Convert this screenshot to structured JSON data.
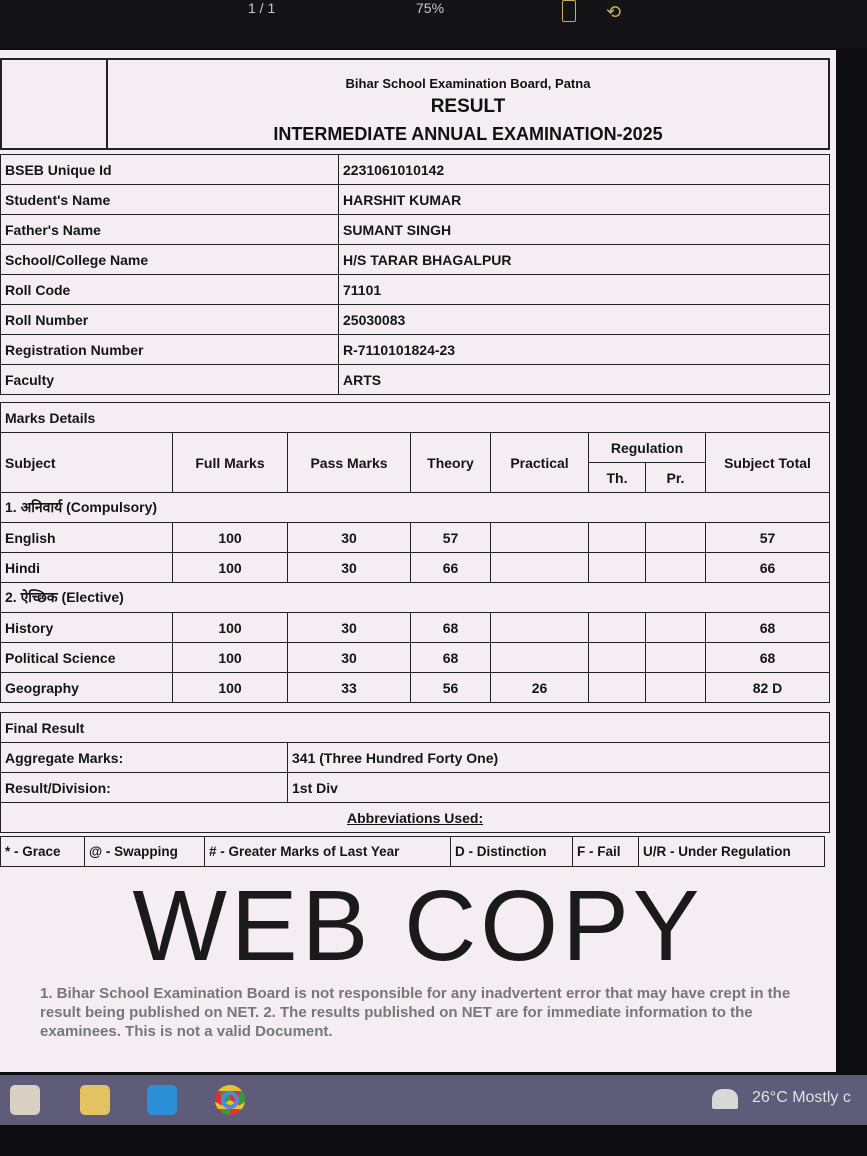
{
  "viewer": {
    "page": "1 / 1",
    "zoom": "75%"
  },
  "header": {
    "board": "Bihar School Examination Board, Patna",
    "title": "RESULT",
    "exam": "INTERMEDIATE ANNUAL EXAMINATION-2025"
  },
  "info": [
    {
      "label": "BSEB Unique Id",
      "value": "2231061010142"
    },
    {
      "label": "Student's Name",
      "value": "HARSHIT KUMAR"
    },
    {
      "label": "Father's Name",
      "value": "SUMANT SINGH"
    },
    {
      "label": "School/College Name",
      "value": "H/S TARAR BHAGALPUR"
    },
    {
      "label": "Roll Code",
      "value": "71101"
    },
    {
      "label": "Roll Number",
      "value": "25030083"
    },
    {
      "label": "Registration Number",
      "value": "R-7110101824-23"
    },
    {
      "label": "Faculty",
      "value": "ARTS"
    }
  ],
  "marks": {
    "section_title": "Marks Details",
    "headers": {
      "subject": "Subject",
      "full": "Full Marks",
      "pass": "Pass Marks",
      "theory": "Theory",
      "practical": "Practical",
      "regulation": "Regulation",
      "th": "Th.",
      "pr": "Pr.",
      "total": "Subject Total"
    },
    "groups": [
      {
        "title": "1. अनिवार्य (Compulsory)",
        "rows": [
          {
            "subject": "English",
            "full": "100",
            "pass": "30",
            "theory": "57",
            "practical": "",
            "th": "",
            "pr": "",
            "total": "57"
          },
          {
            "subject": "Hindi",
            "full": "100",
            "pass": "30",
            "theory": "66",
            "practical": "",
            "th": "",
            "pr": "",
            "total": "66"
          }
        ]
      },
      {
        "title": "2. ऐच्छिक (Elective)",
        "rows": [
          {
            "subject": "History",
            "full": "100",
            "pass": "30",
            "theory": "68",
            "practical": "",
            "th": "",
            "pr": "",
            "total": "68"
          },
          {
            "subject": "Political Science",
            "full": "100",
            "pass": "30",
            "theory": "68",
            "practical": "",
            "th": "",
            "pr": "",
            "total": "68"
          },
          {
            "subject": "Geography",
            "full": "100",
            "pass": "33",
            "theory": "56",
            "practical": "26",
            "th": "",
            "pr": "",
            "total": "82 D"
          }
        ]
      }
    ]
  },
  "final": {
    "title": "Final Result",
    "aggregate_label": "Aggregate Marks:",
    "aggregate": "341 (Three Hundred Forty One)",
    "result_label": "Result/Division:",
    "result": "1st Div",
    "abbrev_title": "Abbreviations Used:"
  },
  "abbreviations": [
    "* - Grace",
    "@ - Swapping",
    "# - Greater Marks of Last Year",
    "D - Distinction",
    "F - Fail",
    "U/R - Under Regulation"
  ],
  "watermark": {
    "stamp": "WEB COPY",
    "notes": "1. Bihar School Examination Board is not responsible for any inadvertent error that may have crept in the result being published on NET. 2. The results published on NET are for immediate information to the examinees. This is not a valid Document."
  },
  "taskbar": {
    "weather": "26°C Mostly c"
  }
}
